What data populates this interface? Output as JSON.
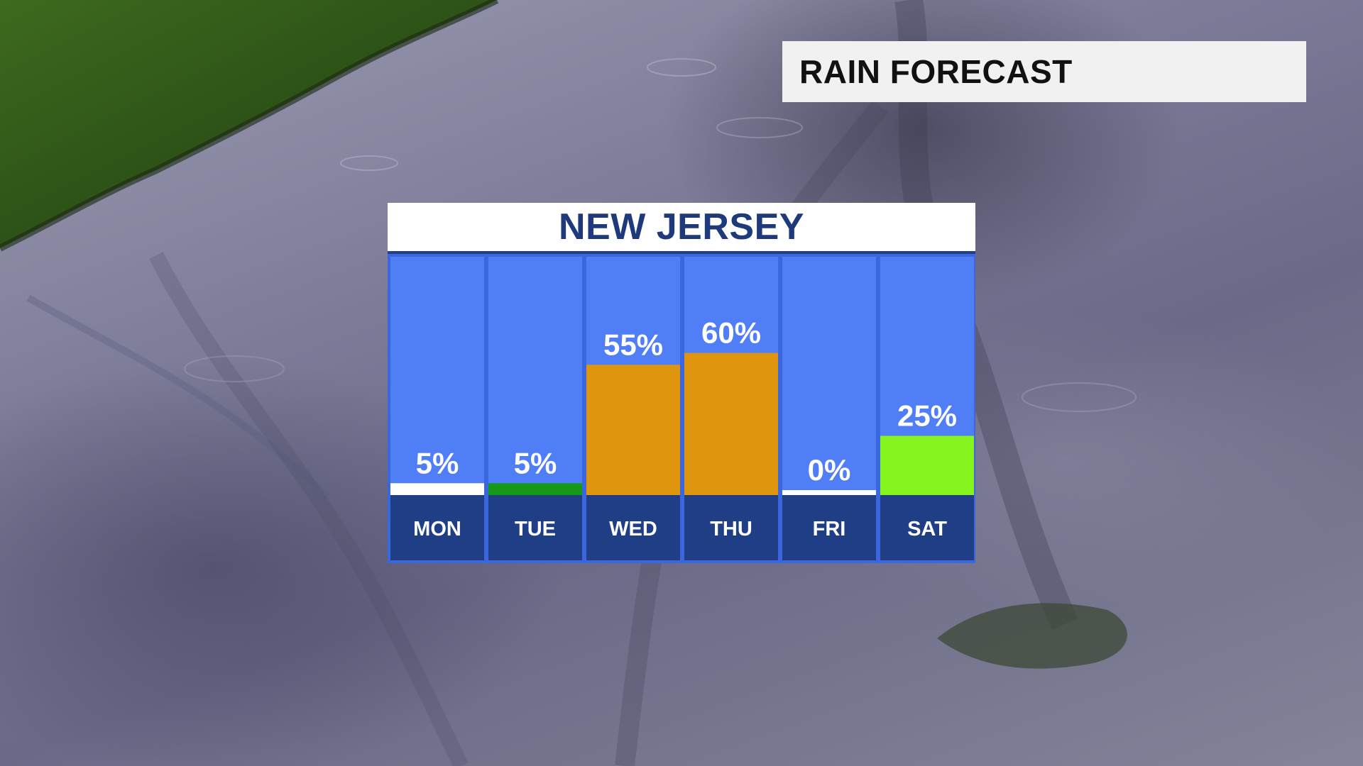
{
  "title": "RAIN FORECAST",
  "chart_data": {
    "type": "bar",
    "title": "NEW JERSEY",
    "unit": "%",
    "categories": [
      "MON",
      "TUE",
      "WED",
      "THU",
      "FRI",
      "SAT"
    ],
    "values": [
      5,
      5,
      55,
      60,
      0,
      25
    ],
    "value_labels": [
      "5%",
      "5%",
      "55%",
      "60%",
      "0%",
      "25%"
    ],
    "bar_colors": [
      "#ffffff",
      "#169818",
      "#e0950f",
      "#e0950f",
      "#ffffff",
      "#86f41e"
    ],
    "ylim": [
      0,
      100
    ],
    "grid": false,
    "legend": "none"
  },
  "colors": {
    "column_background": "#4f7ef6",
    "day_background": "#1f3e86",
    "frame": "#3a66de",
    "header_text": "#1f3a7a",
    "title_text": "#111111"
  }
}
